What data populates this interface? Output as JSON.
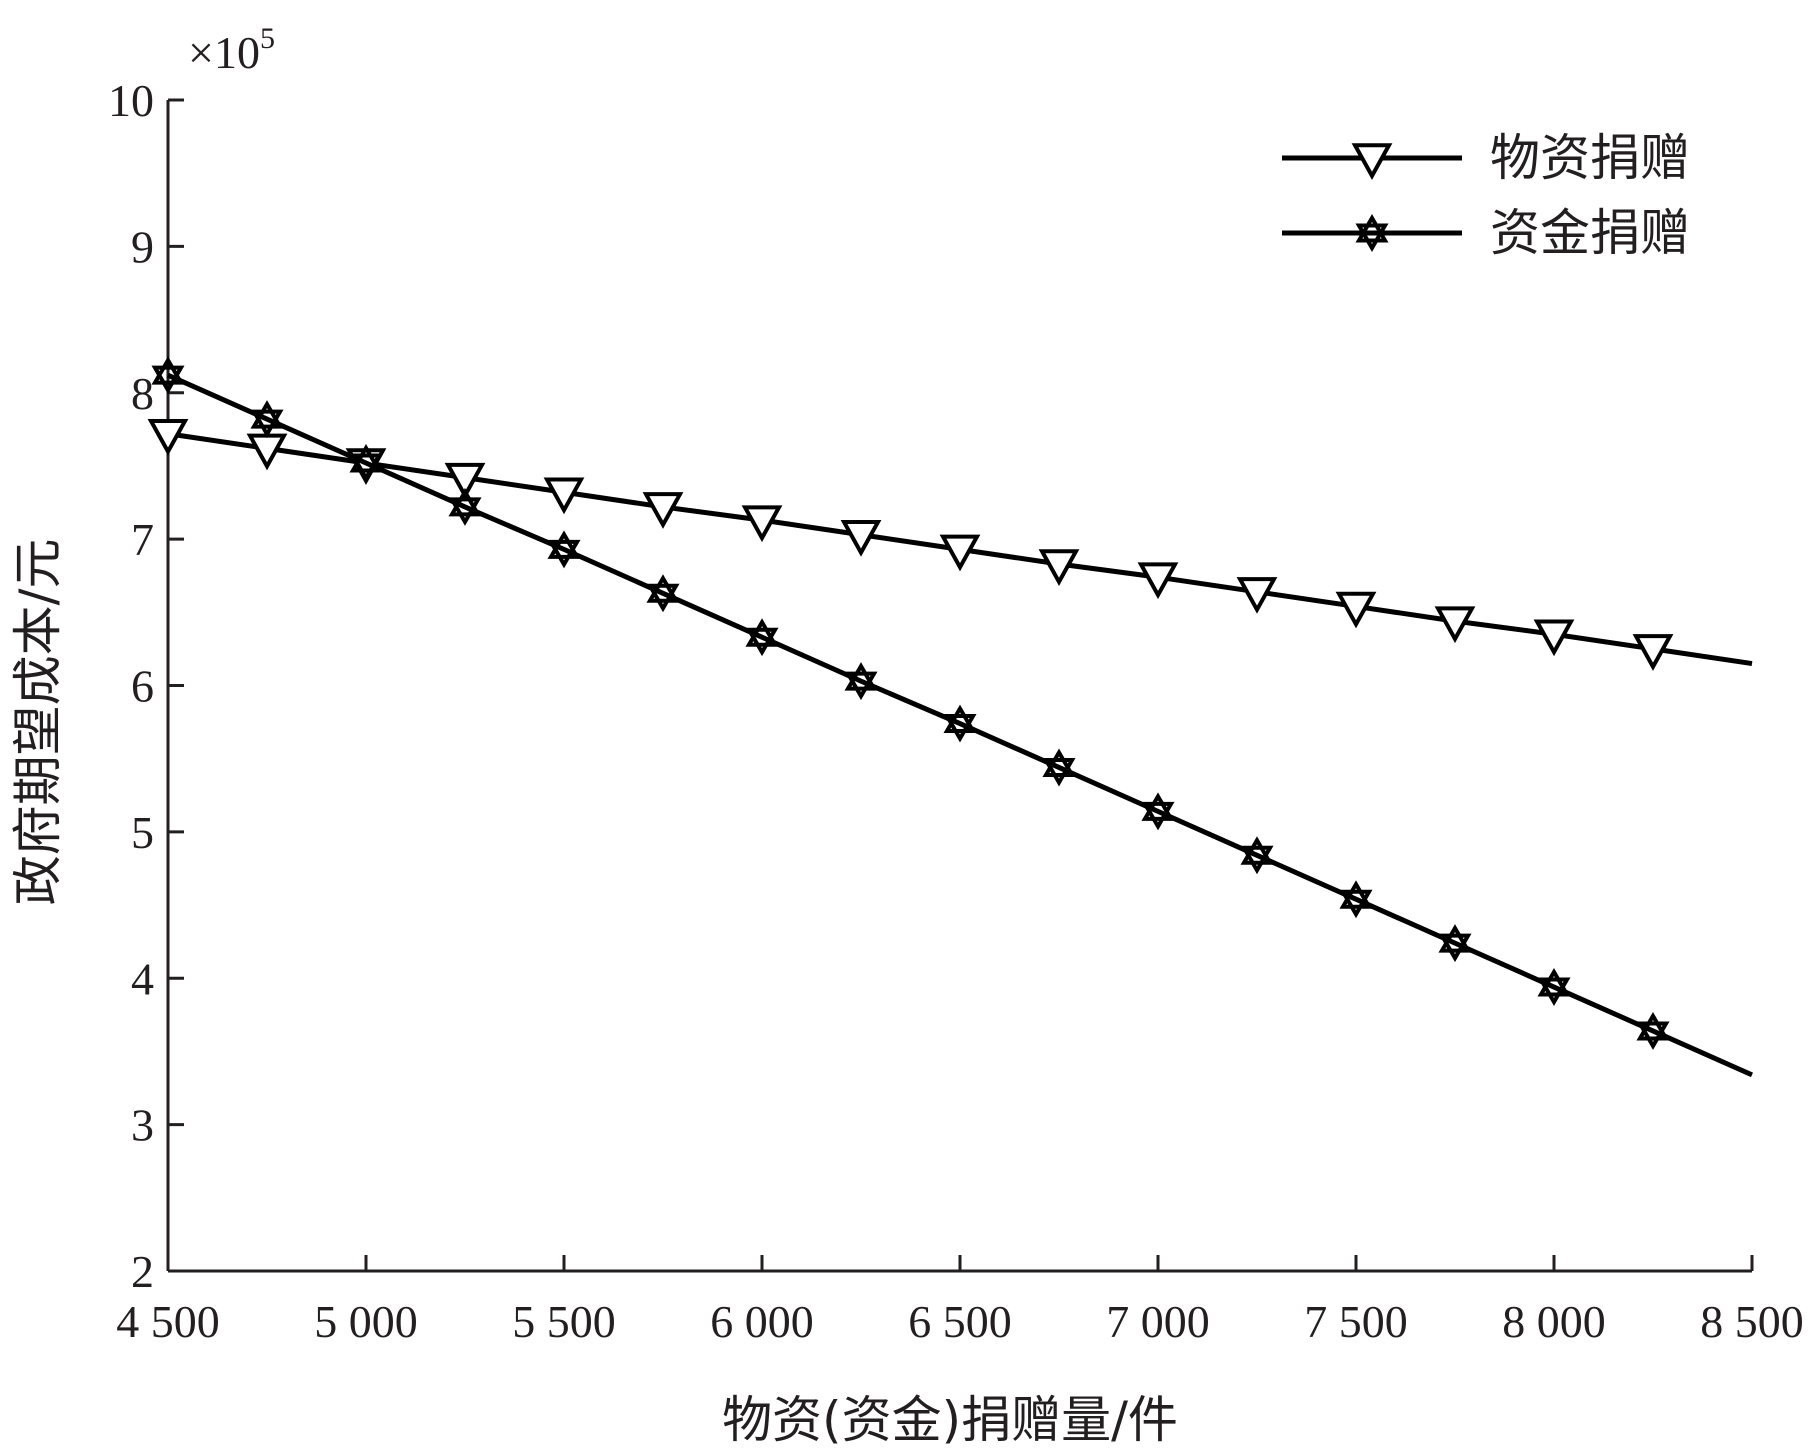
{
  "chart_data": {
    "type": "line",
    "xlabel": "物资(资金)捐赠量/件",
    "ylabel": "政府期望成本/元",
    "y_multiplier": "×10",
    "y_multiplier_exponent": "5",
    "xlim": [
      4500,
      8500
    ],
    "ylim": [
      2,
      10
    ],
    "xticks": [
      4500,
      5000,
      5500,
      6000,
      6500,
      7000,
      7500,
      8000,
      8500
    ],
    "xtick_labels": [
      "4 500",
      "5 000",
      "5 500",
      "6 000",
      "6 500",
      "7 000",
      "7 500",
      "8 000",
      "8 500"
    ],
    "yticks": [
      2,
      3,
      4,
      5,
      6,
      7,
      8,
      9,
      10
    ],
    "ytick_labels": [
      "2",
      "3",
      "4",
      "5",
      "6",
      "7",
      "8",
      "9",
      "10"
    ],
    "grid": false,
    "legend_position": "top-right",
    "series": [
      {
        "name": "物资捐赠",
        "marker": "triangle-down",
        "color": "#000000",
        "x": [
          4500,
          4750,
          5000,
          5250,
          5500,
          5750,
          6000,
          6250,
          6500,
          6750,
          7000,
          7250,
          7500,
          7750,
          8000,
          8250,
          8500
        ],
        "y": [
          7.72,
          7.62,
          7.52,
          7.42,
          7.32,
          7.22,
          7.13,
          7.03,
          6.93,
          6.83,
          6.74,
          6.64,
          6.54,
          6.44,
          6.35,
          6.25,
          6.15
        ],
        "marker_x": [
          4500,
          4750,
          5000,
          5250,
          5500,
          5750,
          6000,
          6250,
          6500,
          6750,
          7000,
          7250,
          7500,
          7750,
          8000,
          8250
        ]
      },
      {
        "name": "资金捐赠",
        "marker": "hexagram",
        "color": "#000000",
        "x": [
          4500,
          4750,
          5000,
          5250,
          5500,
          5750,
          6000,
          6250,
          6500,
          6750,
          7000,
          7250,
          7500,
          7750,
          8000,
          8250,
          8500
        ],
        "y": [
          8.12,
          7.82,
          7.52,
          7.22,
          6.93,
          6.63,
          6.33,
          6.03,
          5.74,
          5.44,
          5.14,
          4.84,
          4.54,
          4.24,
          3.94,
          3.64,
          3.34
        ],
        "marker_x": [
          4500,
          4750,
          5000,
          5250,
          5500,
          5750,
          6000,
          6250,
          6500,
          6750,
          7000,
          7250,
          7500,
          7750,
          8000,
          8250
        ]
      }
    ]
  }
}
